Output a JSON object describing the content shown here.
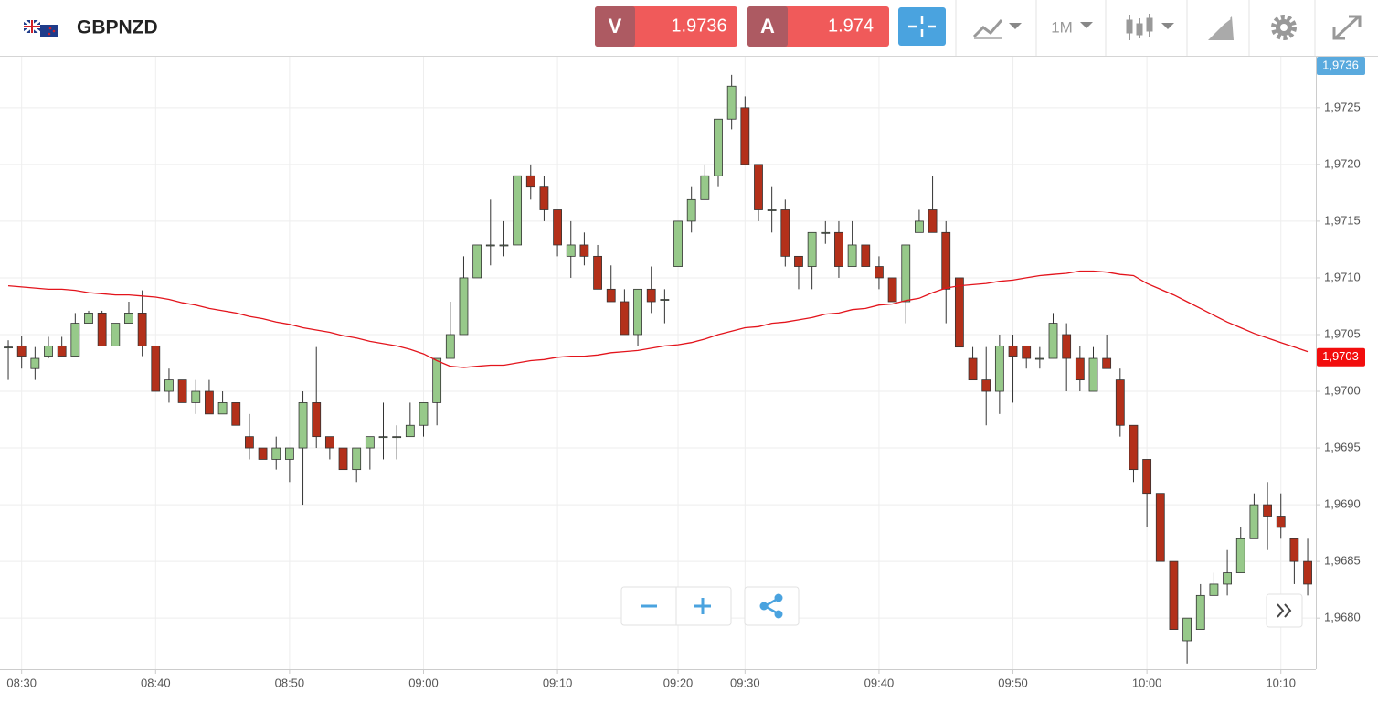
{
  "header": {
    "symbol": "GBPNZD",
    "bid_label": "V",
    "bid": 1.9736,
    "ask_label": "A",
    "ask": 1.974,
    "timeframe": "1M"
  },
  "chart_data": {
    "type": "candlestick",
    "categories": [
      null,
      "08:30",
      null,
      null,
      null,
      null,
      null,
      null,
      null,
      null,
      null,
      "08:40",
      null,
      null,
      null,
      null,
      null,
      null,
      null,
      null,
      null,
      "08:50",
      null,
      null,
      null,
      null,
      null,
      null,
      null,
      null,
      null,
      "09:00",
      null,
      null,
      null,
      null,
      null,
      null,
      null,
      null,
      null,
      "09:10",
      null,
      null,
      null,
      null,
      null,
      null,
      null,
      null,
      "09:20",
      null,
      null,
      null,
      null,
      "09:30",
      null,
      null,
      null,
      null,
      null,
      null,
      null,
      null,
      null,
      "09:40",
      null,
      null,
      null,
      null,
      null,
      null,
      null,
      null,
      null,
      "09:50",
      null,
      null,
      null,
      null,
      null,
      null,
      null,
      null,
      null,
      "10:00",
      null,
      null,
      null,
      null,
      null,
      null,
      null,
      null,
      null,
      "10:10",
      null,
      null
    ],
    "open": [
      1.97039,
      1.9704,
      1.9702,
      1.97031,
      1.9704,
      1.97031,
      1.9706,
      1.97069,
      1.9704,
      1.9706,
      1.97069,
      1.9704,
      1.97,
      1.9701,
      1.9699,
      1.97,
      1.9698,
      1.9699,
      1.9696,
      1.9695,
      1.9694,
      1.9694,
      1.9695,
      1.9699,
      1.9696,
      1.9695,
      1.96931,
      1.9695,
      1.9696,
      1.9696,
      1.9696,
      1.9697,
      1.9699,
      1.97029,
      1.9705,
      1.971,
      1.97129,
      1.97129,
      1.97129,
      1.9719,
      1.9718,
      1.9716,
      1.97119,
      1.97129,
      1.97119,
      1.9709,
      1.97079,
      1.9705,
      1.9709,
      1.97081,
      1.9711,
      1.9715,
      1.97169,
      1.9719,
      1.9724,
      1.9725,
      1.972,
      1.9716,
      1.9716,
      1.97119,
      1.9711,
      1.9714,
      1.9714,
      1.9711,
      1.97129,
      1.9711,
      1.971,
      1.97079,
      1.9714,
      1.9716,
      1.9714,
      1.971,
      1.97029,
      1.9701,
      1.97,
      1.9704,
      1.9704,
      1.97029,
      1.97029,
      1.9705,
      1.97029,
      1.97,
      1.97029,
      1.9701,
      1.9697,
      1.9694,
      1.9691,
      1.9685,
      1.9678,
      1.9679,
      1.9682,
      1.9683,
      1.9684,
      1.9687,
      1.969,
      1.9689,
      1.9687,
      1.9685
    ],
    "high": [
      1.97045,
      1.97049,
      1.97039,
      1.97048,
      1.97048,
      1.97069,
      1.97071,
      1.97071,
      1.9706,
      1.97079,
      1.97089,
      1.9704,
      1.9702,
      1.9701,
      1.9701,
      1.9701,
      1.97,
      1.9699,
      1.9698,
      1.9695,
      1.9696,
      1.9695,
      1.97,
      1.97039,
      1.9696,
      1.9695,
      1.9695,
      1.9696,
      1.9699,
      1.9697,
      1.9699,
      1.9699,
      1.97029,
      1.97079,
      1.97119,
      1.97129,
      1.97169,
      1.9715,
      1.9719,
      1.972,
      1.9719,
      1.9716,
      1.9715,
      1.9714,
      1.97129,
      1.97111,
      1.9709,
      1.9709,
      1.9711,
      1.9709,
      1.9715,
      1.9718,
      1.972,
      1.9724,
      1.97279,
      1.9726,
      1.972,
      1.9718,
      1.97169,
      1.97119,
      1.9714,
      1.9715,
      1.9715,
      1.9715,
      1.97129,
      1.97119,
      1.971,
      1.97129,
      1.9716,
      1.9719,
      1.9715,
      1.971,
      1.97039,
      1.97039,
      1.9705,
      1.9705,
      1.9704,
      1.97039,
      1.97069,
      1.9706,
      1.9704,
      1.97039,
      1.9705,
      1.9702,
      1.9697,
      1.9694,
      1.9691,
      1.9685,
      1.968,
      1.9683,
      1.9684,
      1.9686,
      1.9688,
      1.9691,
      1.9692,
      1.9691,
      1.9687,
      1.9687
    ],
    "low": [
      1.9701,
      1.9702,
      1.9701,
      1.97029,
      1.97031,
      1.97031,
      1.9706,
      1.9704,
      1.9704,
      1.9706,
      1.97031,
      1.97,
      1.9699,
      1.9699,
      1.9698,
      1.9698,
      1.9698,
      1.9697,
      1.9694,
      1.9694,
      1.96931,
      1.9692,
      1.969,
      1.9695,
      1.9694,
      1.96931,
      1.9692,
      1.96931,
      1.9694,
      1.9694,
      1.9696,
      1.9696,
      1.9697,
      1.97029,
      1.9705,
      1.971,
      1.97111,
      1.97119,
      1.97129,
      1.97169,
      1.9715,
      1.97119,
      1.971,
      1.97111,
      1.9709,
      1.97079,
      1.9705,
      1.9704,
      1.97069,
      1.9706,
      1.9711,
      1.9714,
      1.97169,
      1.9718,
      1.97231,
      1.972,
      1.9715,
      1.9714,
      1.9711,
      1.9709,
      1.9709,
      1.9713,
      1.971,
      1.9711,
      1.9711,
      1.9709,
      1.97079,
      1.9706,
      1.9714,
      1.9714,
      1.9706,
      1.97039,
      1.9701,
      1.9697,
      1.9698,
      1.9699,
      1.9702,
      1.9702,
      1.97029,
      1.97,
      1.97,
      1.97,
      1.9702,
      1.9696,
      1.9692,
      1.9688,
      1.9685,
      1.9679,
      1.9676,
      1.9679,
      1.9682,
      1.9682,
      1.9684,
      1.9687,
      1.9686,
      1.9687,
      1.9683,
      1.9682
    ],
    "close": [
      1.97039,
      1.97031,
      1.97029,
      1.9704,
      1.97031,
      1.9706,
      1.97069,
      1.9704,
      1.9706,
      1.97069,
      1.9704,
      1.97,
      1.9701,
      1.9699,
      1.97,
      1.9698,
      1.9699,
      1.9697,
      1.9695,
      1.9694,
      1.9695,
      1.9695,
      1.9699,
      1.9696,
      1.9695,
      1.96931,
      1.9695,
      1.9696,
      1.9696,
      1.9696,
      1.9697,
      1.9699,
      1.97029,
      1.9705,
      1.971,
      1.97129,
      1.97129,
      1.97129,
      1.9719,
      1.9718,
      1.9716,
      1.97129,
      1.97129,
      1.97119,
      1.9709,
      1.97079,
      1.9705,
      1.9709,
      1.97079,
      1.97081,
      1.9715,
      1.97169,
      1.9719,
      1.9724,
      1.97269,
      1.972,
      1.9716,
      1.9716,
      1.97119,
      1.9711,
      1.9714,
      1.9714,
      1.9711,
      1.97129,
      1.9711,
      1.971,
      1.97079,
      1.97129,
      1.9715,
      1.9714,
      1.9709,
      1.97039,
      1.9701,
      1.97,
      1.9704,
      1.97031,
      1.97029,
      1.97029,
      1.9706,
      1.97029,
      1.9701,
      1.97029,
      1.9702,
      1.9697,
      1.96931,
      1.9691,
      1.9685,
      1.9679,
      1.968,
      1.9682,
      1.9683,
      1.9684,
      1.9687,
      1.969,
      1.9689,
      1.9688,
      1.9685,
      1.9683
    ],
    "up_color": "#97c98a",
    "down_color": "#b3301a",
    "moving_average": {
      "color": "#e3141c",
      "values": [
        1.97093,
        1.97092,
        1.97091,
        1.9709,
        1.9709,
        1.97089,
        1.97087,
        1.97086,
        1.97085,
        1.97085,
        1.97084,
        1.97083,
        1.97081,
        1.97078,
        1.97076,
        1.97073,
        1.97071,
        1.97069,
        1.97066,
        1.97064,
        1.97061,
        1.97059,
        1.97056,
        1.97054,
        1.97052,
        1.97049,
        1.97047,
        1.97044,
        1.97042,
        1.9704,
        1.97037,
        1.97033,
        1.97027,
        1.97022,
        1.97021,
        1.97022,
        1.97023,
        1.97023,
        1.97025,
        1.97027,
        1.97028,
        1.9703,
        1.97031,
        1.97031,
        1.97032,
        1.97034,
        1.97035,
        1.97036,
        1.97038,
        1.9704,
        1.97041,
        1.97043,
        1.97046,
        1.9705,
        1.97053,
        1.97056,
        1.97057,
        1.9706,
        1.97061,
        1.97063,
        1.97065,
        1.97068,
        1.97069,
        1.97072,
        1.97073,
        1.97076,
        1.97077,
        1.9708,
        1.97082,
        1.97087,
        1.97091,
        1.97093,
        1.97094,
        1.97095,
        1.97097,
        1.97098,
        1.971,
        1.97102,
        1.97103,
        1.97104,
        1.97106,
        1.97106,
        1.97105,
        1.97103,
        1.97102,
        1.97095,
        1.9709,
        1.97085,
        1.97079,
        1.97073,
        1.97067,
        1.97061,
        1.97056,
        1.97051,
        1.97047,
        1.97043,
        1.97039,
        1.97035
      ]
    },
    "ylim": [
      1.96755,
      1.97295
    ],
    "yticks": [
      {
        "value": 1.968,
        "label": "1,9680"
      },
      {
        "value": 1.9685,
        "label": "1,9685"
      },
      {
        "value": 1.969,
        "label": "1,9690"
      },
      {
        "value": 1.9695,
        "label": "1,9695"
      },
      {
        "value": 1.97,
        "label": "1,9700"
      },
      {
        "value": 1.9705,
        "label": "1,9705"
      },
      {
        "value": 1.971,
        "label": "1,9710"
      },
      {
        "value": 1.9715,
        "label": "1,9715"
      },
      {
        "value": 1.972,
        "label": "1,9720"
      },
      {
        "value": 1.9725,
        "label": "1,9725"
      }
    ],
    "grid": true,
    "current_bid": {
      "value": 1.9736,
      "label": "1,9736"
    },
    "last_price": {
      "value": 1.9703,
      "label": "1,9703"
    }
  }
}
